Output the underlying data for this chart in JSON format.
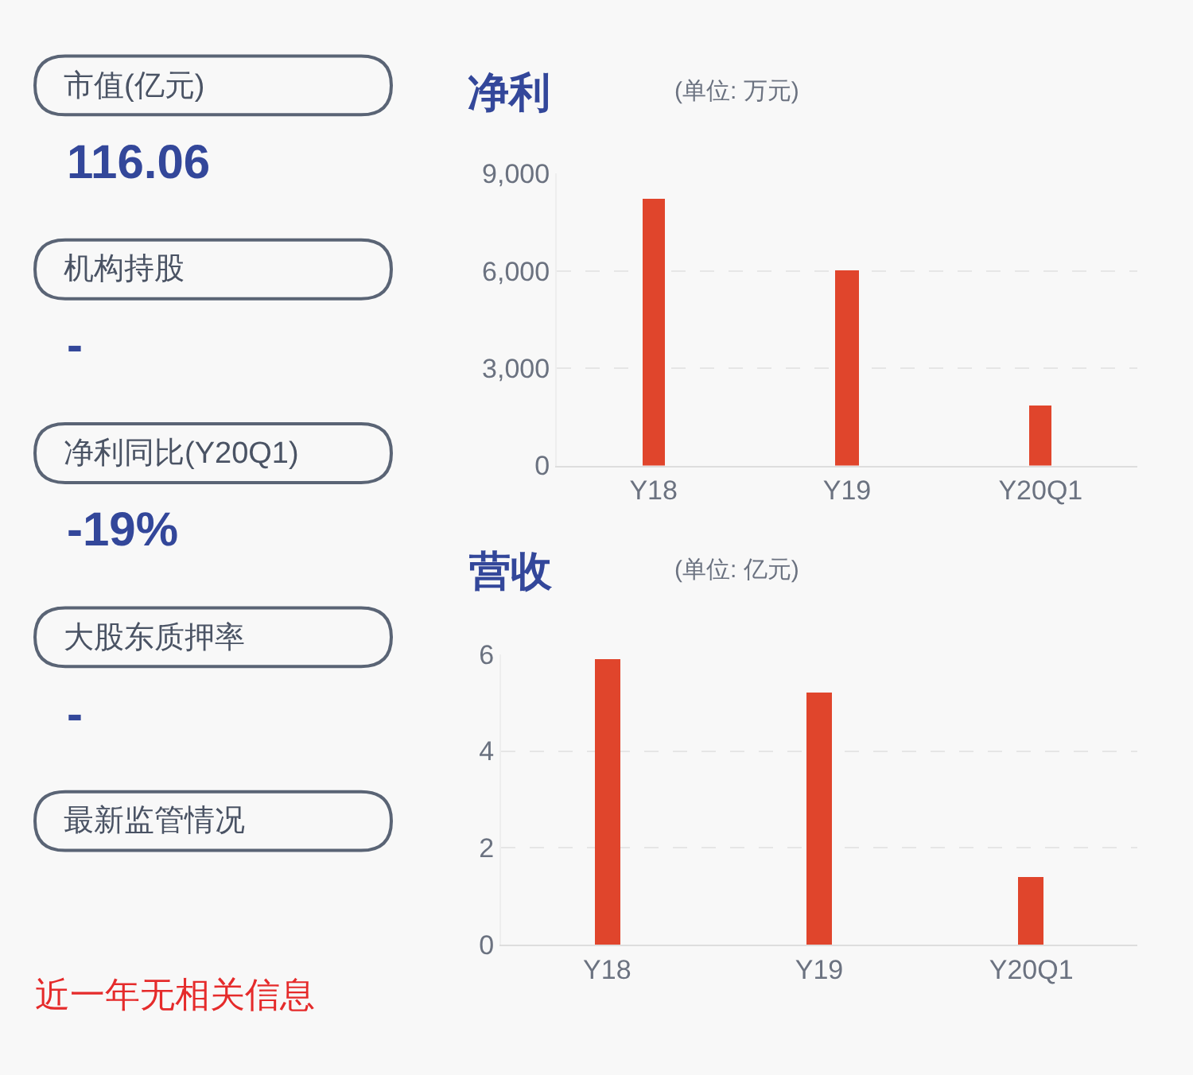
{
  "chart_data": [
    {
      "type": "other",
      "annotations": [
        "市值(亿元)",
        "116.06",
        "机构持股",
        "-",
        "净利同比(Y20Q1)",
        "-19%",
        "大股东质押率",
        "-",
        "最新监管情况",
        "近一年无相关信息"
      ]
    },
    {
      "type": "bar",
      "title": "净利",
      "subtitle": "(单位: 万元)",
      "categories": [
        "Y18",
        "Y19",
        "Y20Q1"
      ],
      "values": [
        8200,
        6000,
        1850
      ],
      "color": "#e0452c",
      "ylim": [
        0,
        9000
      ],
      "yticks": [
        {
          "value": 0,
          "label": "0"
        },
        {
          "value": 3000,
          "label": "3,000"
        },
        {
          "value": 6000,
          "label": "6,000"
        },
        {
          "value": 9000,
          "label": "9,000"
        }
      ],
      "grid": "y"
    },
    {
      "type": "bar",
      "title": "营收",
      "subtitle": "(单位: 亿元)",
      "categories": [
        "Y18",
        "Y19",
        "Y20Q1"
      ],
      "values": [
        5.9,
        5.2,
        1.4
      ],
      "color": "#e0452c",
      "ylim": [
        0,
        6
      ],
      "yticks": [
        0,
        2,
        4,
        6
      ],
      "grid": "y"
    }
  ]
}
